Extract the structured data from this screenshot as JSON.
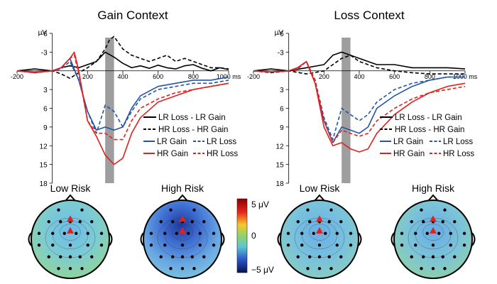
{
  "figure": {
    "unit_label": "μV",
    "x_unit": "ms",
    "colors": {
      "lr": "#2255a4",
      "hr": "#e0221e",
      "diff": "#000000",
      "window": "#9e9e9e"
    }
  },
  "chart_data": [
    {
      "type": "line",
      "title": "Gain Context",
      "ylabel": "μV",
      "xlabel": "ms",
      "xlim": [
        -200,
        1000
      ],
      "ylim": [
        -6,
        18
      ],
      "y_inverted": true,
      "x_ticks": [
        "-200",
        "200",
        "400",
        "600",
        "800",
        "1000 ms"
      ],
      "y_ticks": [
        "-6",
        "-3",
        "3",
        "6",
        "9",
        "12",
        "15",
        "18"
      ],
      "highlight_window_ms": [
        300,
        350
      ],
      "legend": [
        [
          "LR Loss - LR Gain"
        ],
        [
          "HR Loss - HR Gain"
        ],
        [
          "LR Gain",
          "LR Loss"
        ],
        [
          "HR Gain",
          "HR Loss"
        ]
      ],
      "series": [
        {
          "name": "LR Loss - LR Gain",
          "color": "diff",
          "dash": false,
          "x": [
            -200,
            -100,
            0,
            50,
            100,
            150,
            200,
            250,
            300,
            350,
            400,
            450,
            500,
            550,
            600,
            650,
            700,
            750,
            800,
            850,
            900,
            950,
            1000
          ],
          "y": [
            0,
            -0.3,
            0,
            -0.5,
            -0.8,
            -0.5,
            -1,
            -1.5,
            -3,
            -2.2,
            -1.2,
            -0.5,
            -0.8,
            -0.4,
            -0.9,
            -0.5,
            -0.3,
            -0.8,
            -1,
            -0.4,
            0,
            -0.5,
            -0.2
          ]
        },
        {
          "name": "HR Loss - HR Gain",
          "color": "diff",
          "dash": true,
          "x": [
            -200,
            -100,
            0,
            50,
            100,
            150,
            200,
            250,
            300,
            325,
            350,
            400,
            450,
            500,
            550,
            600,
            650,
            700,
            750,
            800,
            850,
            900,
            950,
            1000
          ],
          "y": [
            0,
            0.3,
            0,
            0.5,
            1.2,
            0.3,
            -0.5,
            -1.5,
            -3.5,
            -5,
            -5.5,
            -3.5,
            -2.5,
            -2,
            -1.5,
            -2,
            -2.5,
            -1.5,
            -2,
            -1.5,
            -1,
            -0.5,
            -0.5,
            -0.3
          ]
        },
        {
          "name": "LR Gain",
          "color": "lr",
          "dash": false,
          "x": [
            -200,
            -100,
            0,
            50,
            100,
            150,
            200,
            250,
            300,
            350,
            400,
            450,
            500,
            600,
            700,
            800,
            900,
            1000
          ],
          "y": [
            0,
            0.2,
            0,
            -0.5,
            -2,
            1.5,
            6.5,
            9.5,
            9,
            9.5,
            9,
            6,
            4,
            2.5,
            2,
            1.5,
            1.5,
            1
          ]
        },
        {
          "name": "LR Loss",
          "color": "lr",
          "dash": true,
          "x": [
            -200,
            -100,
            0,
            50,
            100,
            150,
            200,
            250,
            300,
            350,
            400,
            450,
            500,
            600,
            700,
            800,
            900,
            1000
          ],
          "y": [
            0,
            0.3,
            0,
            -0.3,
            -1.5,
            1.5,
            6.5,
            10,
            5.5,
            6.5,
            9,
            6.5,
            4.5,
            3,
            2.5,
            2,
            2,
            1.5
          ]
        },
        {
          "name": "HR Gain",
          "color": "hr",
          "dash": false,
          "x": [
            -200,
            -100,
            0,
            50,
            100,
            125,
            150,
            200,
            250,
            300,
            350,
            400,
            450,
            500,
            600,
            700,
            800,
            900,
            1000
          ],
          "y": [
            0,
            0.3,
            0,
            -0.5,
            -2,
            -3,
            0,
            8,
            10.5,
            13.5,
            15,
            14,
            10,
            7.5,
            5,
            4,
            3,
            2.5,
            2
          ]
        },
        {
          "name": "HR Loss",
          "color": "hr",
          "dash": true,
          "x": [
            -200,
            -100,
            0,
            50,
            100,
            125,
            150,
            200,
            250,
            300,
            350,
            400,
            450,
            500,
            600,
            700,
            800,
            900,
            1000
          ],
          "y": [
            0,
            0.2,
            0,
            -0.5,
            -2,
            -2.5,
            0.5,
            8,
            10,
            10,
            11,
            11,
            8,
            6,
            4.5,
            3.5,
            3,
            2.5,
            2
          ]
        }
      ]
    },
    {
      "type": "line",
      "title": "Loss Context",
      "ylabel": "μV",
      "xlabel": "ms",
      "xlim": [
        -200,
        1000
      ],
      "ylim": [
        -6,
        18
      ],
      "y_inverted": true,
      "x_ticks": [
        "-200",
        "200",
        "400",
        "600",
        "800",
        "1000 ms"
      ],
      "y_ticks": [
        "-6",
        "-3",
        "3",
        "6",
        "9",
        "12",
        "15",
        "18"
      ],
      "highlight_window_ms": [
        300,
        350
      ],
      "legend": [
        [
          "LR Loss - LR Gain"
        ],
        [
          "HR Loss - HR Gain"
        ],
        [
          "LR Gain",
          "LR Loss"
        ],
        [
          "HR Gain",
          "HR Loss"
        ]
      ],
      "series": [
        {
          "name": "LR Loss - LR Gain",
          "color": "diff",
          "dash": false,
          "x": [
            -200,
            -100,
            0,
            100,
            200,
            250,
            300,
            350,
            400,
            450,
            500,
            600,
            700,
            800,
            900,
            1000
          ],
          "y": [
            0,
            -0.3,
            0,
            -0.5,
            -1,
            -2.5,
            -3,
            -2.5,
            -2,
            -1.5,
            -1,
            -1,
            -0.5,
            -0.5,
            -0.5,
            -0.3
          ]
        },
        {
          "name": "HR Loss - HR Gain",
          "color": "diff",
          "dash": true,
          "x": [
            -200,
            -100,
            0,
            100,
            200,
            250,
            300,
            350,
            400,
            450,
            500,
            600,
            700,
            800,
            900,
            1000
          ],
          "y": [
            0,
            0.3,
            0,
            0.5,
            0,
            -1,
            -2,
            -2.5,
            -1.5,
            -1,
            -0.5,
            0,
            0.3,
            0.5,
            0.5,
            0.5
          ]
        },
        {
          "name": "LR Gain",
          "color": "lr",
          "dash": false,
          "x": [
            -200,
            -100,
            0,
            50,
            100,
            150,
            200,
            250,
            300,
            350,
            400,
            450,
            500,
            600,
            700,
            800,
            900,
            1000
          ],
          "y": [
            0,
            0.2,
            0,
            -0.5,
            -1.5,
            2,
            8,
            11.5,
            9,
            9.5,
            10,
            9,
            6,
            4,
            2.5,
            1.5,
            1,
            1
          ]
        },
        {
          "name": "LR Loss",
          "color": "lr",
          "dash": true,
          "x": [
            -200,
            -100,
            0,
            50,
            100,
            150,
            200,
            250,
            300,
            350,
            400,
            450,
            500,
            600,
            700,
            800,
            900,
            1000
          ],
          "y": [
            0,
            0.2,
            0,
            -0.3,
            -1.5,
            1.5,
            7.5,
            11,
            6,
            7,
            8,
            7,
            5,
            3,
            2,
            1.5,
            1,
            1
          ]
        },
        {
          "name": "HR Gain",
          "color": "hr",
          "dash": false,
          "x": [
            -200,
            -100,
            0,
            50,
            100,
            150,
            200,
            250,
            300,
            350,
            400,
            450,
            500,
            600,
            700,
            800,
            900,
            1000
          ],
          "y": [
            0,
            0.2,
            0,
            -0.5,
            -1.5,
            2,
            9,
            12,
            11.5,
            12.5,
            13,
            12.5,
            10,
            7,
            5,
            3.5,
            2.5,
            2
          ]
        },
        {
          "name": "HR Loss",
          "color": "hr",
          "dash": true,
          "x": [
            -200,
            -100,
            0,
            50,
            100,
            150,
            200,
            250,
            300,
            350,
            400,
            450,
            500,
            600,
            700,
            800,
            900,
            1000
          ],
          "y": [
            0,
            0.2,
            0,
            -0.3,
            -1.5,
            1.5,
            8,
            11.5,
            9.5,
            10,
            10.5,
            10,
            8,
            6,
            4.5,
            3.5,
            3,
            2.5
          ]
        }
      ]
    }
  ],
  "topomaps": [
    {
      "label": "Low Risk",
      "context": "Gain Context",
      "center_value": -2.5,
      "edge_value": 0.3
    },
    {
      "label": "High Risk",
      "context": "Gain Context",
      "center_value": -4.8,
      "edge_value": -2.0
    },
    {
      "label": "Low Risk",
      "context": "Loss Context",
      "center_value": -2.2,
      "edge_value": -0.6
    },
    {
      "label": "High Risk",
      "context": "Loss Context",
      "center_value": -2.3,
      "edge_value": -0.5
    }
  ],
  "colorbar": {
    "ticks": [
      "5 μV",
      "0",
      "−5 μV"
    ],
    "range": [
      -5,
      5
    ]
  }
}
